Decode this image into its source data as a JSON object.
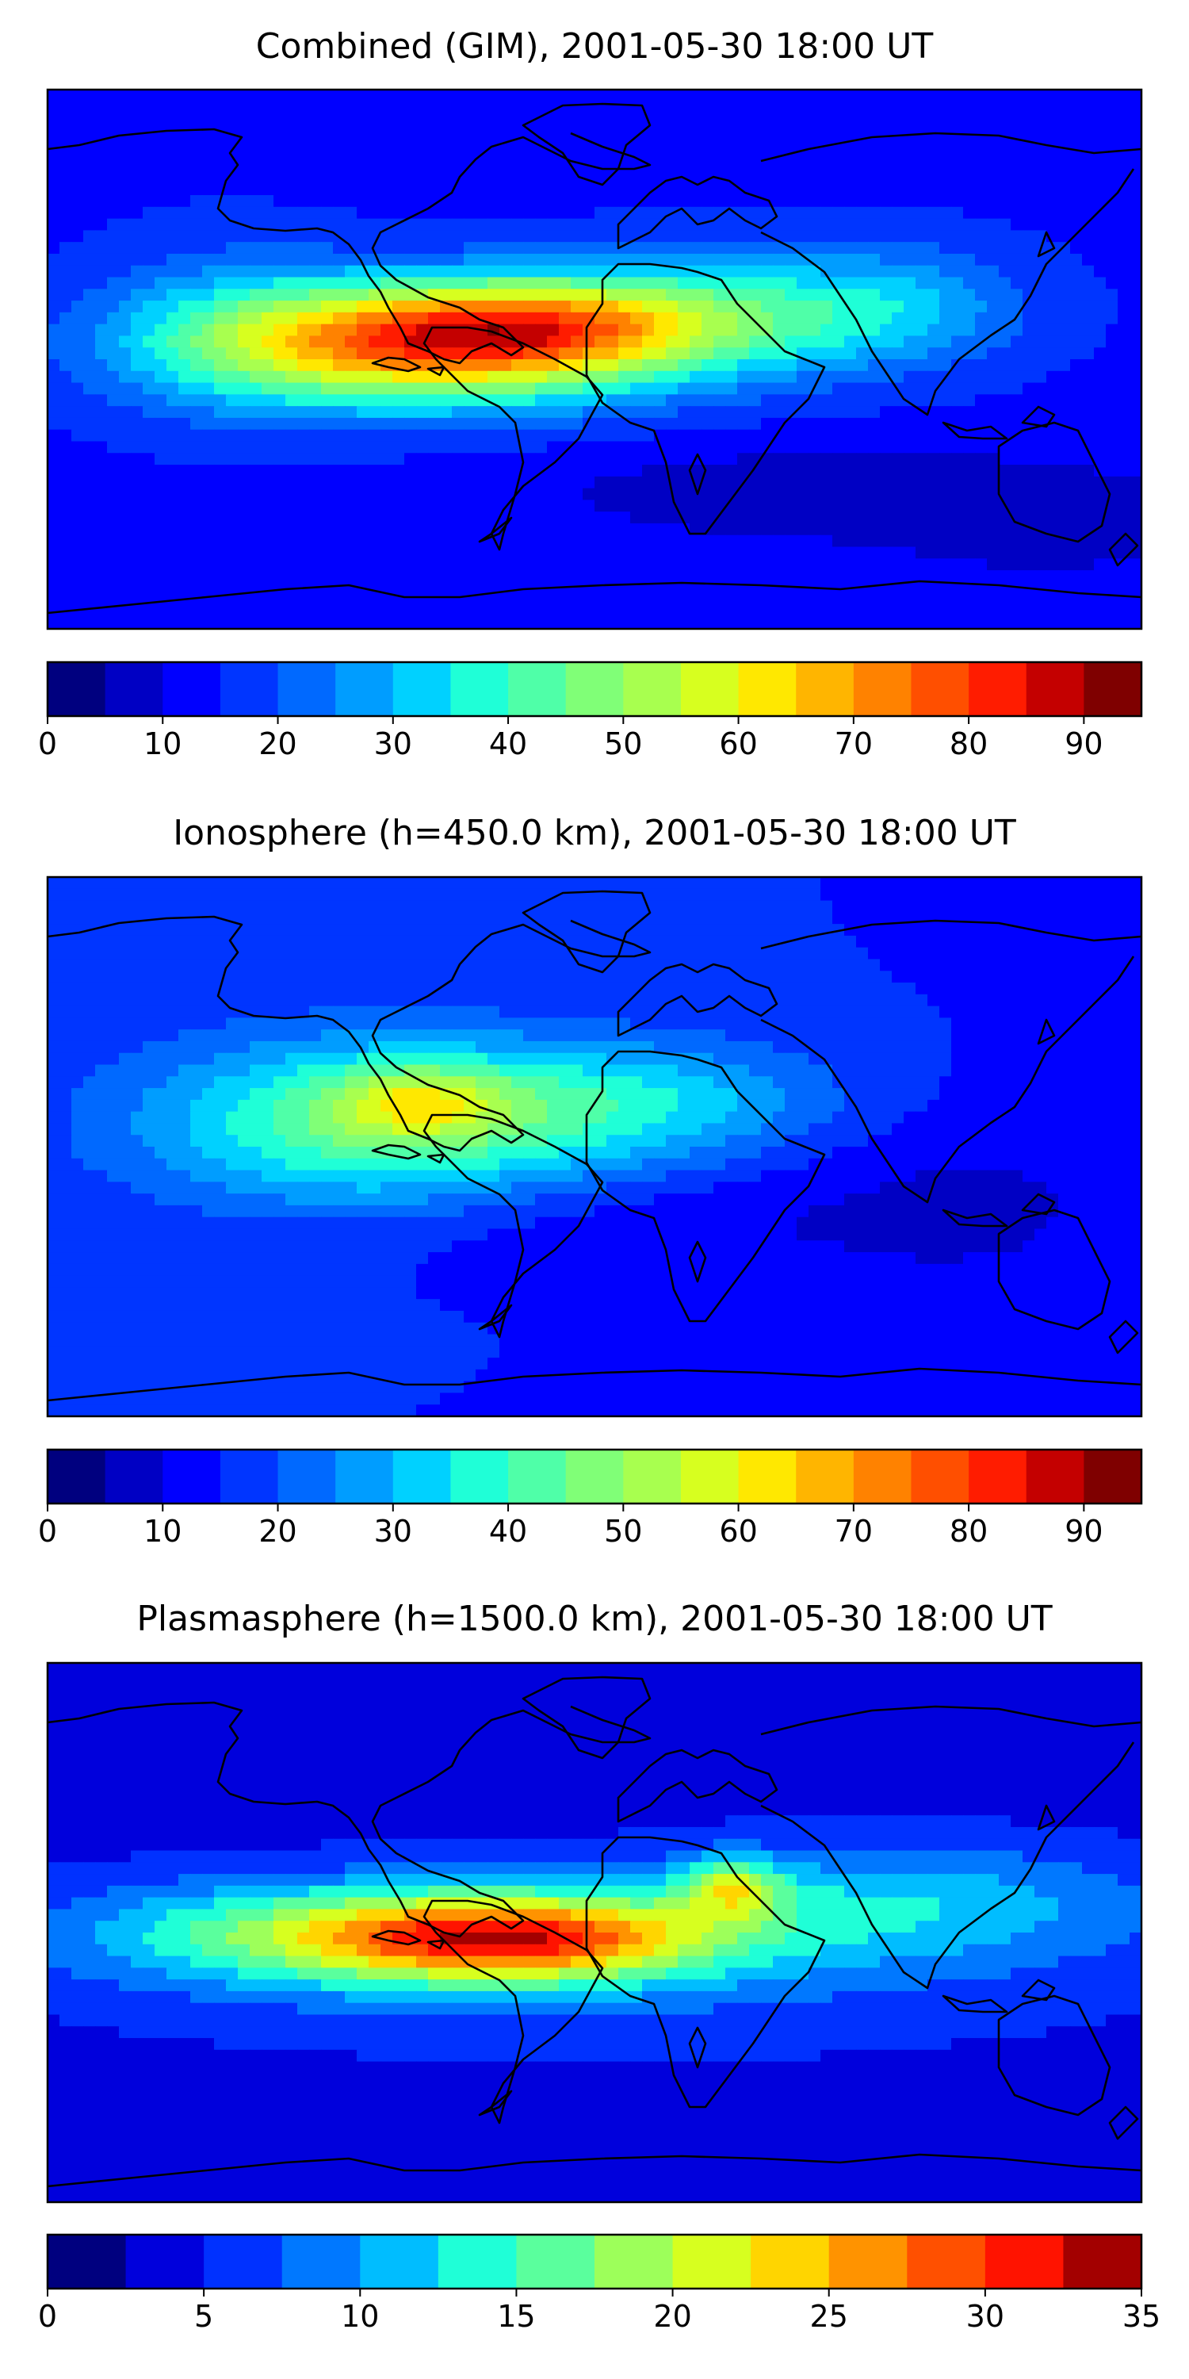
{
  "panels": [
    {
      "title": "Combined (GIM), 2001-05-30 18:00 UT",
      "colorbar": {
        "levels": [
          0,
          5,
          10,
          15,
          20,
          25,
          30,
          35,
          40,
          45,
          50,
          55,
          60,
          65,
          70,
          75,
          80,
          85,
          90,
          95
        ],
        "tick_labels": [
          "0",
          "10",
          "20",
          "30",
          "40",
          "50",
          "60",
          "70",
          "80",
          "90"
        ],
        "tick_values": [
          0,
          10,
          20,
          30,
          40,
          50,
          60,
          70,
          80,
          90
        ],
        "vmin": 0,
        "vmax": 95
      },
      "field": {
        "background_level": 14,
        "blobs": [
          {
            "lon": -55,
            "lat": 5,
            "slon": 55,
            "slat": 14,
            "amp": 58
          },
          {
            "lon": -20,
            "lat": 12,
            "slon": 40,
            "slat": 10,
            "amp": 22
          },
          {
            "lon": 40,
            "lat": 15,
            "slon": 45,
            "slat": 14,
            "amp": 20
          },
          {
            "lon": 100,
            "lat": 18,
            "slon": 30,
            "slat": 14,
            "amp": 12
          },
          {
            "lon": -120,
            "lat": 10,
            "slon": 30,
            "slat": 20,
            "amp": 10
          },
          {
            "lon": 60,
            "lat": -45,
            "slon": 60,
            "slat": 12,
            "amp": -7
          },
          {
            "lon": 150,
            "lat": -55,
            "slon": 40,
            "slat": 15,
            "amp": -6
          }
        ]
      }
    },
    {
      "title": "Ionosphere  (h=450.0 km), 2001-05-30 18:00 UT",
      "colorbar": {
        "levels": [
          0,
          5,
          10,
          15,
          20,
          25,
          30,
          35,
          40,
          45,
          50,
          55,
          60,
          65,
          70,
          75,
          80,
          85,
          90,
          95
        ],
        "tick_labels": [
          "0",
          "10",
          "20",
          "30",
          "40",
          "50",
          "60",
          "70",
          "80",
          "90"
        ],
        "tick_values": [
          0,
          10,
          20,
          30,
          40,
          50,
          60,
          70,
          80,
          90
        ],
        "vmin": 0,
        "vmax": 95
      },
      "field": {
        "background_level": 15,
        "blobs": [
          {
            "lon": -70,
            "lat": 8,
            "slon": 55,
            "slat": 20,
            "amp": 30
          },
          {
            "lon": -58,
            "lat": 15,
            "slon": 20,
            "slat": 8,
            "amp": 18
          },
          {
            "lon": 20,
            "lat": 15,
            "slon": 45,
            "slat": 14,
            "amp": 15
          },
          {
            "lon": -10,
            "lat": -25,
            "slon": 60,
            "slat": 12,
            "amp": -5
          },
          {
            "lon": 120,
            "lat": -20,
            "slon": 50,
            "slat": 25,
            "amp": -6
          }
        ]
      }
    },
    {
      "title": "Plasmasphere (h=1500.0 km), 2001-05-30 18:00 UT",
      "colorbar": {
        "levels": [
          0,
          2.5,
          5,
          7.5,
          10,
          12.5,
          15,
          17.5,
          20,
          22.5,
          25,
          27.5,
          30,
          32.5,
          35
        ],
        "tick_labels": [
          "0",
          "5",
          "10",
          "15",
          "20",
          "25",
          "30",
          "35"
        ],
        "tick_values": [
          0,
          5,
          10,
          15,
          20,
          25,
          30,
          35
        ],
        "vmin": 0,
        "vmax": 35
      },
      "field": {
        "background_level": 4,
        "blobs": [
          {
            "lon": -25,
            "lat": -2,
            "slon": 45,
            "slat": 10,
            "amp": 21
          },
          {
            "lon": 45,
            "lat": 15,
            "slon": 12,
            "slat": 7,
            "amp": 11
          },
          {
            "lon": -95,
            "lat": 0,
            "slon": 55,
            "slat": 12,
            "amp": 10
          },
          {
            "lon": 100,
            "lat": 10,
            "slon": 60,
            "slat": 14,
            "amp": 7
          },
          {
            "lon": 0,
            "lat": -10,
            "slon": 120,
            "slat": 20,
            "amp": 4
          }
        ]
      }
    }
  ],
  "colors": {
    "jet_19": [
      "#00007f",
      "#0000c4",
      "#0000ff",
      "#0035ff",
      "#0069ff",
      "#009dff",
      "#00d1ff",
      "#1fffd7",
      "#4fffa8",
      "#80ff77",
      "#a8ff4f",
      "#d7ff1f",
      "#ffe800",
      "#ffb500",
      "#ff8200",
      "#ff4f00",
      "#ff1c00",
      "#c40000",
      "#7f0000"
    ],
    "jet_14": [
      "#00007f",
      "#0000dc",
      "#0031ff",
      "#0078ff",
      "#00bdff",
      "#1fffd7",
      "#5aff9d",
      "#9dff5a",
      "#d7ff1f",
      "#ffd500",
      "#ff9300",
      "#ff5000",
      "#ff1300",
      "#a30000"
    ]
  }
}
